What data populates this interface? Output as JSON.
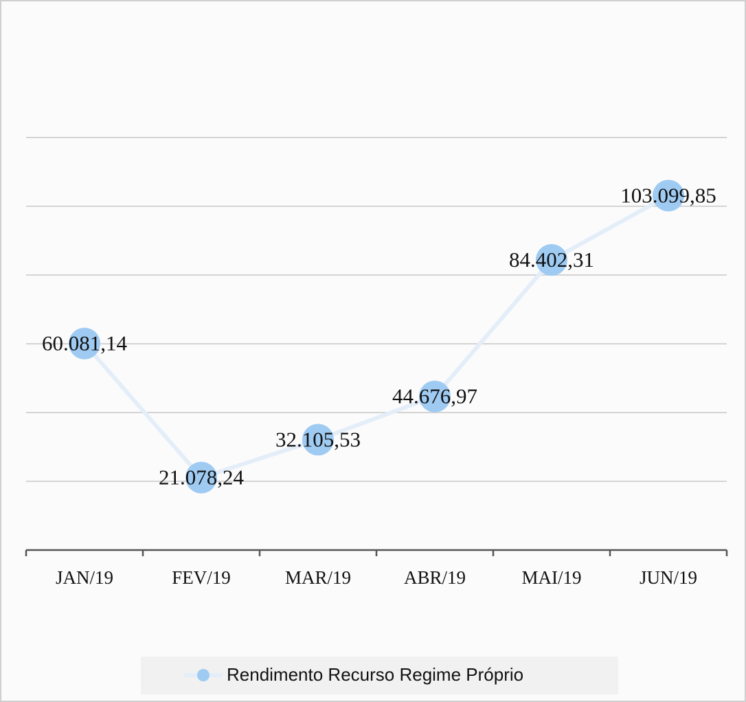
{
  "chart_data": {
    "type": "line",
    "categories": [
      "JAN/19",
      "FEV/19",
      "MAR/19",
      "ABR/19",
      "MAI/19",
      "JUN/19"
    ],
    "series": [
      {
        "name": "Rendimento Recurso Regime Próprio",
        "color": "#9fcbf3",
        "values": [
          60081.14,
          21078.24,
          32105.53,
          44676.97,
          84402.31,
          103099.85
        ],
        "value_labels": [
          "60.081,14",
          "21.078,24",
          "32.105,53",
          "44.676,97",
          "84.402,31",
          "103.099,85"
        ]
      }
    ],
    "ylim": [
      0,
      120000
    ],
    "yticks": [
      0,
      20000,
      40000,
      60000,
      80000,
      100000,
      120000
    ],
    "grid": true,
    "legend": "bottom"
  }
}
